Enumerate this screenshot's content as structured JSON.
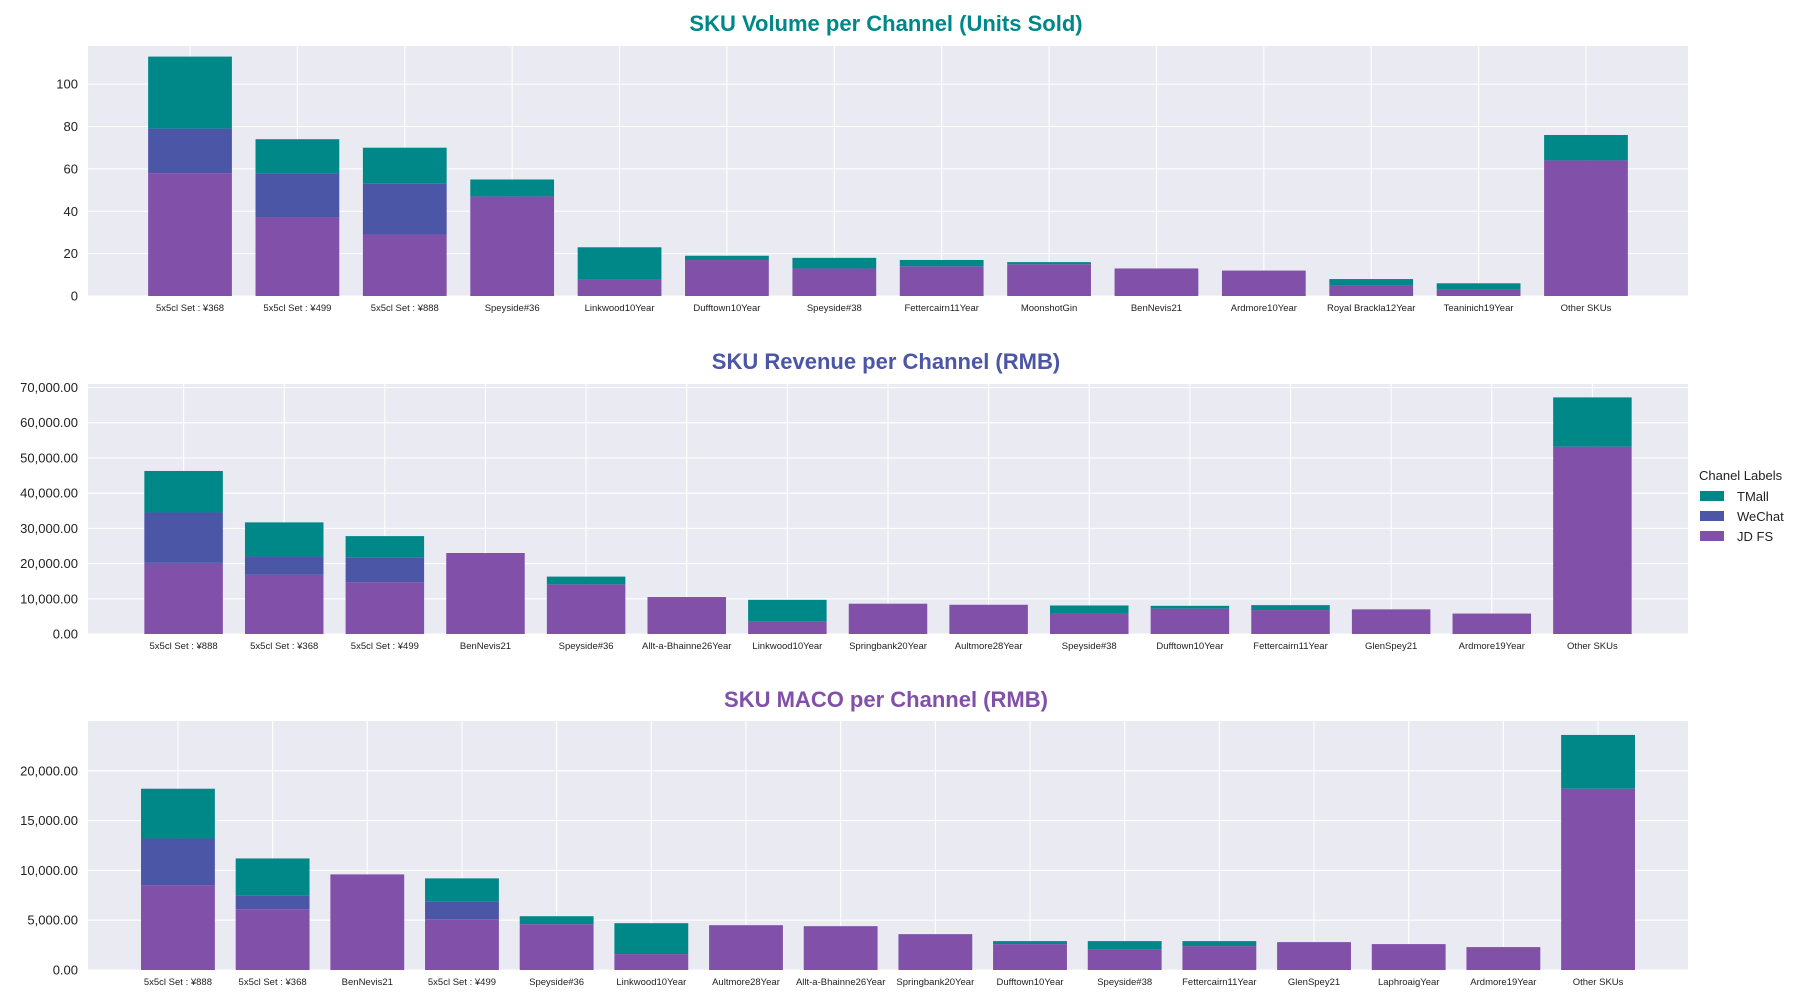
{
  "colors": {
    "TMall": "#008787",
    "WeChat": "#4c56a6",
    "JD FS": "#8150a8",
    "panel_bg": "#eaeaf2",
    "grid": "#ffffff",
    "title_volume": "#008787",
    "title_revenue": "#4c56a6",
    "title_maco": "#8150a8"
  },
  "legend": {
    "title": "Chanel Labels",
    "items": [
      "TMall",
      "WeChat",
      "JD FS"
    ],
    "placement": "right"
  },
  "chart_data": [
    {
      "type": "bar",
      "stacked": true,
      "title": "SKU Volume per Channel (Units Sold)",
      "xlabel": "",
      "ylabel": "",
      "ylim": [
        0,
        118
      ],
      "yticks": [
        0,
        20,
        40,
        60,
        80,
        100
      ],
      "ytick_labels": [
        "0",
        "20",
        "40",
        "60",
        "80",
        "100"
      ],
      "grid": true,
      "categories": [
        "5x5cl Set : ¥368",
        "5x5cl Set : ¥499",
        "5x5cl Set : ¥888",
        "Speyside#36",
        "Linkwood10Year",
        "Dufftown10Year",
        "Speyside#38",
        "Fettercairn11Year",
        "MoonshotGin",
        "BenNevis21",
        "Ardmore10Year",
        "Royal Brackla12Year",
        "Teaninich19Year",
        "Other SKUs"
      ],
      "series": [
        {
          "name": "JD FS",
          "values": [
            58,
            37,
            29,
            47,
            8,
            17,
            13,
            14,
            15,
            13,
            12,
            5,
            3,
            64
          ]
        },
        {
          "name": "WeChat",
          "values": [
            21,
            21,
            24,
            0,
            0,
            0,
            0,
            0,
            0,
            0,
            0,
            0,
            0,
            0
          ]
        },
        {
          "name": "TMall",
          "values": [
            34,
            16,
            17,
            8,
            15,
            2,
            5,
            3,
            1,
            0,
            0,
            3,
            3,
            12
          ]
        }
      ]
    },
    {
      "type": "bar",
      "stacked": true,
      "title": "SKU Revenue per Channel (RMB)",
      "xlabel": "",
      "ylabel": "",
      "ylim": [
        0,
        71000
      ],
      "yticks": [
        0,
        10000,
        20000,
        30000,
        40000,
        50000,
        60000,
        70000
      ],
      "ytick_labels": [
        "0.00",
        "10,000.00",
        "20,000.00",
        "30,000.00",
        "40,000.00",
        "50,000.00",
        "60,000.00",
        "70,000.00"
      ],
      "grid": true,
      "categories": [
        "5x5cl Set : ¥888",
        "5x5cl Set : ¥368",
        "5x5cl Set : ¥499",
        "BenNevis21",
        "Speyside#36",
        "Allt-a-Bhainne26Year",
        "Linkwood10Year",
        "Springbank20Year",
        "Aultmore28Year",
        "Speyside#38",
        "Dufftown10Year",
        "Fettercairn11Year",
        "GlenSpey21",
        "Ardmore19Year",
        "Other SKUs"
      ],
      "series": [
        {
          "name": "JD FS",
          "values": [
            20200,
            16800,
            14700,
            23000,
            14100,
            10500,
            3500,
            8600,
            8300,
            5800,
            7200,
            6800,
            7000,
            5800,
            53200
          ]
        },
        {
          "name": "WeChat",
          "values": [
            14300,
            5200,
            7100,
            0,
            0,
            0,
            0,
            0,
            0,
            0,
            0,
            0,
            0,
            0,
            0
          ]
        },
        {
          "name": "TMall",
          "values": [
            11800,
            9700,
            6000,
            0,
            2200,
            0,
            6200,
            0,
            0,
            2300,
            800,
            1400,
            0,
            0,
            14000
          ]
        }
      ]
    },
    {
      "type": "bar",
      "stacked": true,
      "title": "SKU MACO per Channel (RMB)",
      "xlabel": "",
      "ylabel": "",
      "ylim": [
        0,
        25000
      ],
      "yticks": [
        0,
        5000,
        10000,
        15000,
        20000
      ],
      "ytick_labels": [
        "0.00",
        "5,000.00",
        "10,000.00",
        "15,000.00",
        "20,000.00"
      ],
      "grid": true,
      "categories": [
        "5x5cl Set : ¥888",
        "5x5cl Set : ¥368",
        "BenNevis21",
        "5x5cl Set : ¥499",
        "Speyside#36",
        "Linkwood10Year",
        "Aultmore28Year",
        "Allt-a-Bhainne26Year",
        "Springbank20Year",
        "Dufftown10Year",
        "Speyside#38",
        "Fettercairn11Year",
        "GlenSpey21",
        "LaphroaigYear",
        "Ardmore19Year",
        "Other SKUs"
      ],
      "series": [
        {
          "name": "JD FS",
          "values": [
            8500,
            6100,
            9600,
            5100,
            4600,
            1600,
            4500,
            4400,
            3600,
            2600,
            2100,
            2400,
            2800,
            2600,
            2300,
            18200
          ]
        },
        {
          "name": "WeChat",
          "values": [
            4700,
            1400,
            0,
            1800,
            0,
            0,
            0,
            0,
            0,
            0,
            0,
            0,
            0,
            0,
            0,
            0
          ]
        },
        {
          "name": "TMall",
          "values": [
            5000,
            3700,
            0,
            2300,
            800,
            3100,
            0,
            0,
            0,
            300,
            800,
            500,
            0,
            0,
            0,
            5400
          ]
        }
      ]
    }
  ]
}
